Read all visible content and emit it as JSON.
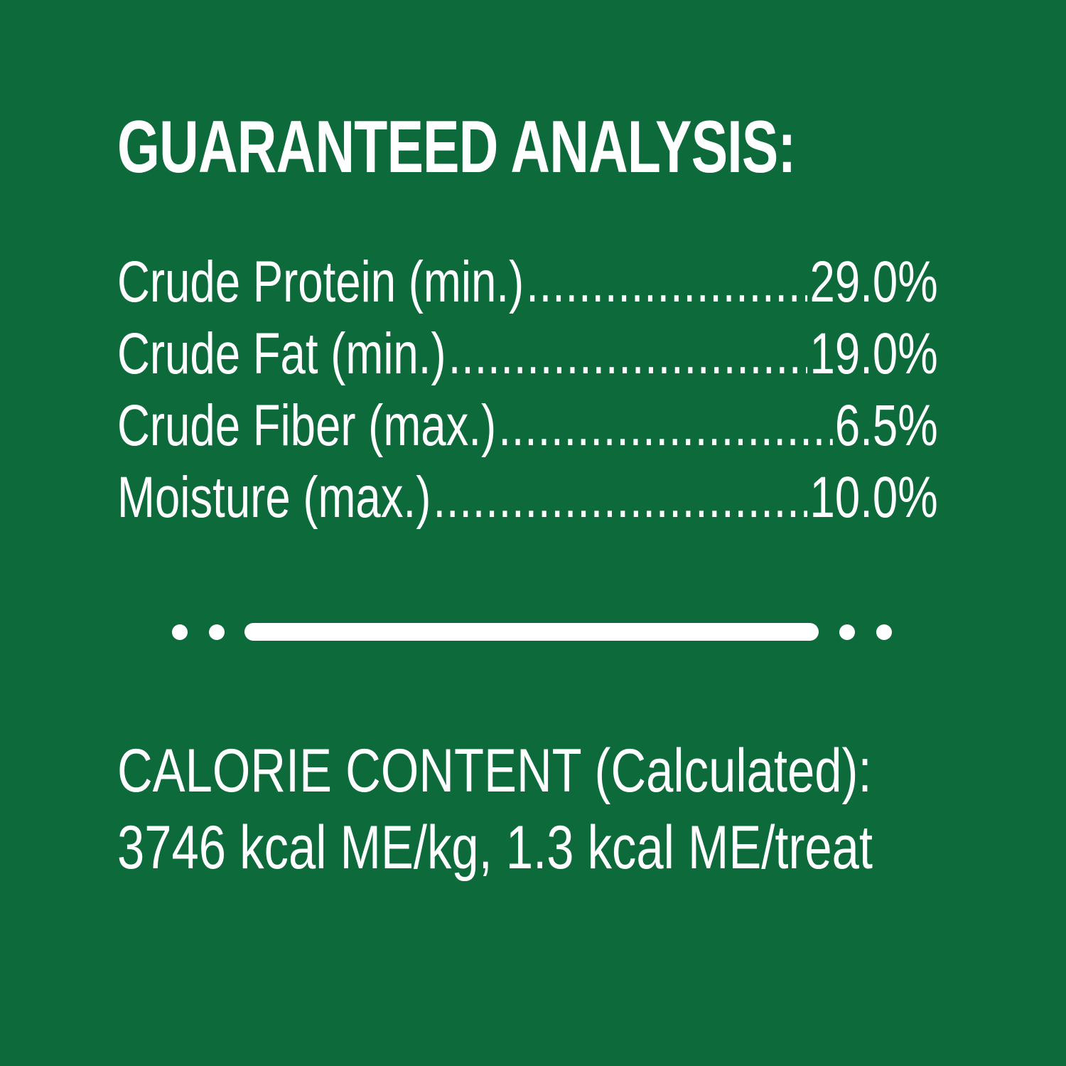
{
  "title": "GUARANTEED ANALYSIS:",
  "analysis": [
    {
      "label": "Crude Protein (min.)",
      "value": "29.0%"
    },
    {
      "label": "Crude Fat (min.)",
      "value": "19.0%"
    },
    {
      "label": "Crude Fiber (max.)",
      "value": "6.5%"
    },
    {
      "label": "Moisture (max.)",
      "value": "10.0%"
    }
  ],
  "calorie": {
    "heading": "CALORIE CONTENT (Calculated):",
    "value": "3746 kcal ME/kg, 1.3 kcal ME/treat"
  },
  "colors": {
    "background": "#0d6a3b",
    "text": "#ffffff"
  }
}
